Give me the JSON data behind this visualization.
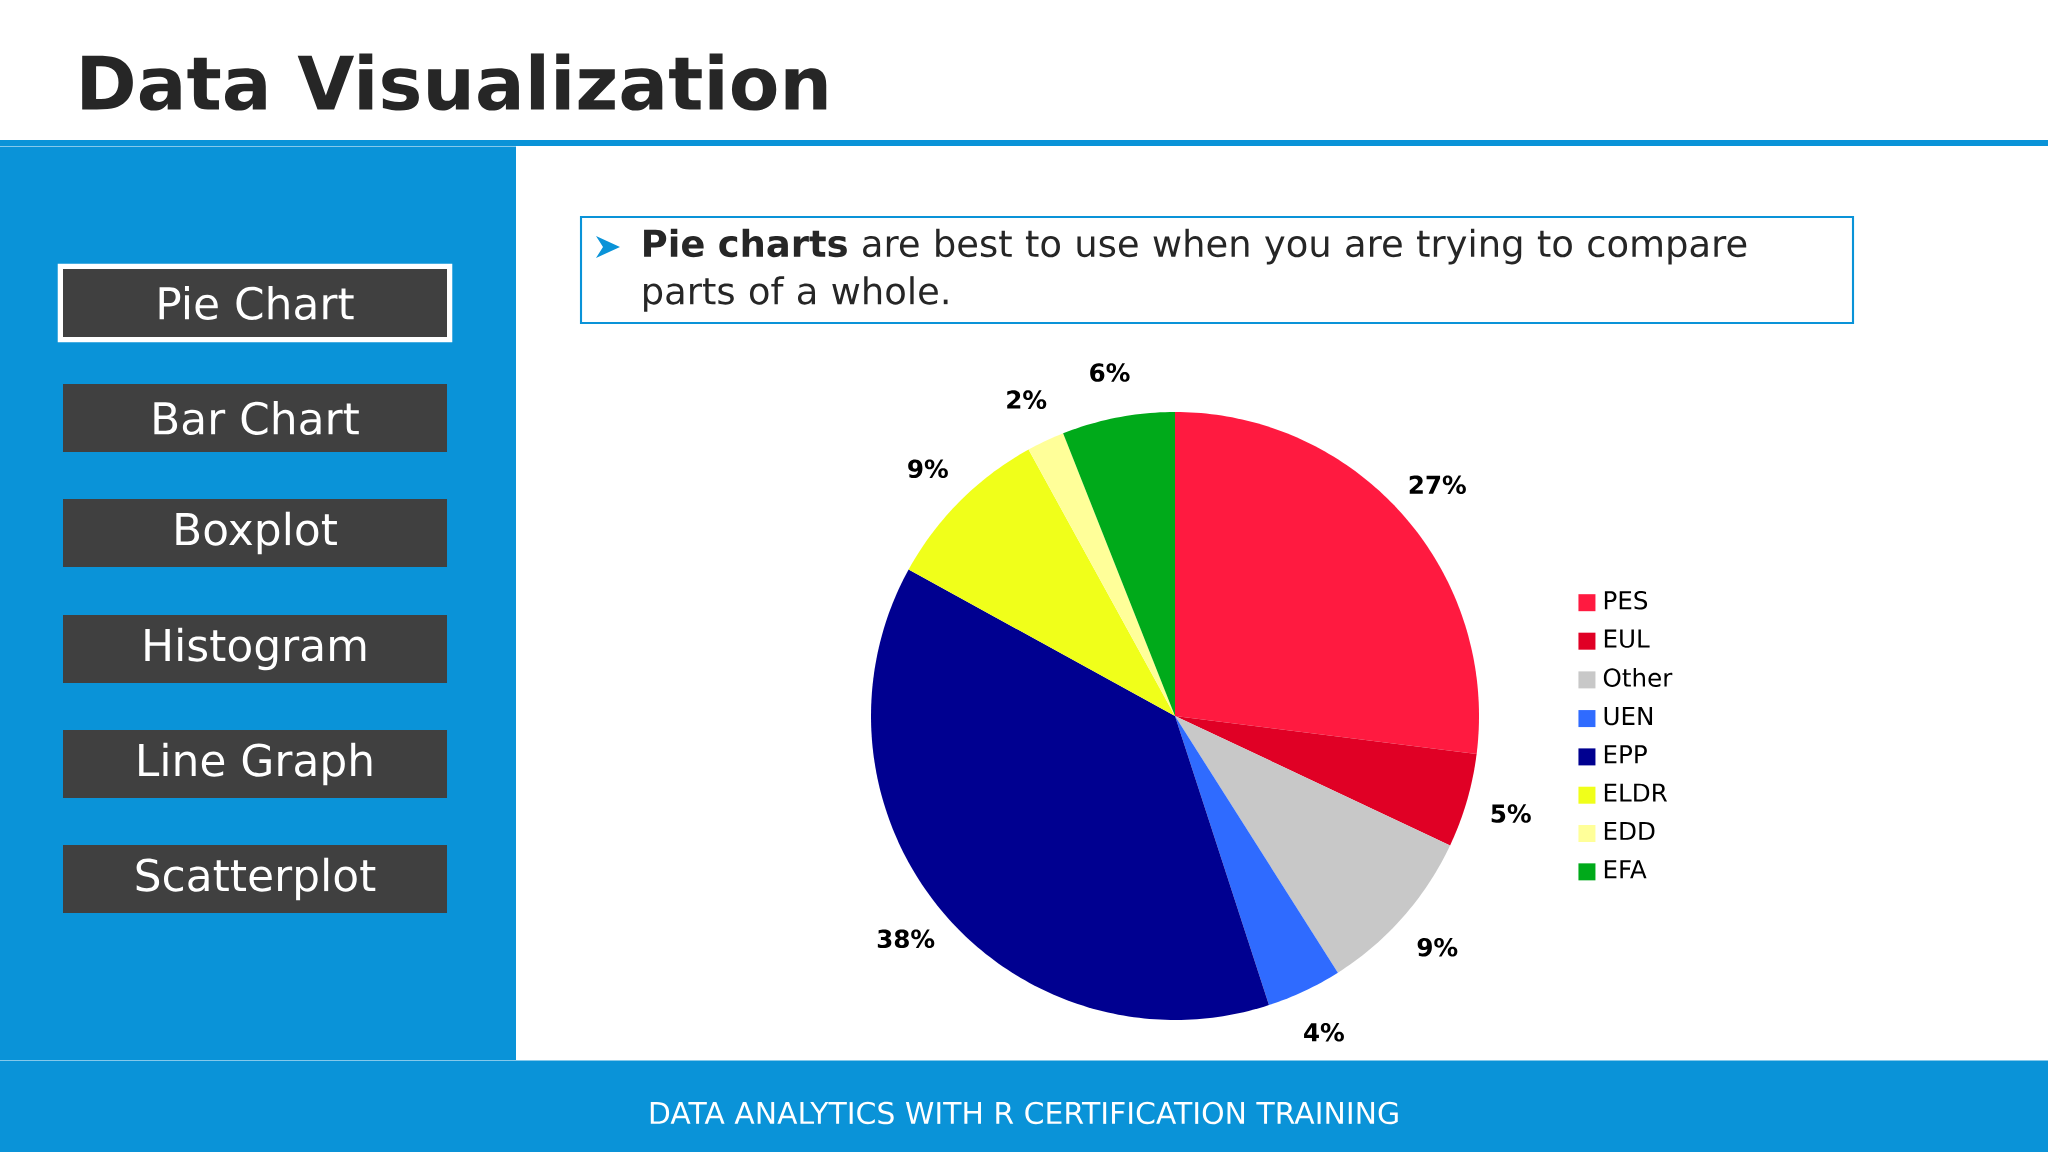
{
  "chart_data": {
    "type": "pie",
    "title": "Data Visualization",
    "subtitle": "**Pie charts** are best to use when you are trying to compare parts of a whole.",
    "categories": [
      "PES",
      "EUL",
      "Other",
      "UEN",
      "EPP",
      "ELDR",
      "EDD",
      "EFA"
    ],
    "values": [
      27,
      5,
      9,
      4,
      38,
      9,
      2,
      6
    ],
    "value_labels": [
      "27%",
      "5%",
      "9%",
      "4%",
      "38%",
      "9%",
      "2%",
      "6%"
    ],
    "colors": [
      "#ff1a40",
      "#e00025",
      "#c8c8c8",
      "#2f6bff",
      "#000090",
      "#f0ff1a",
      "#ffff99",
      "#00aa1a"
    ],
    "legend": "right",
    "annotations": [
      "Pie Chart",
      "Bar Chart",
      "Boxplot",
      "Histogram",
      "Line Graph",
      "Scatterplot",
      "DATA ANALYTICS WITH R CERTIFICATION TRAINING"
    ]
  }
}
